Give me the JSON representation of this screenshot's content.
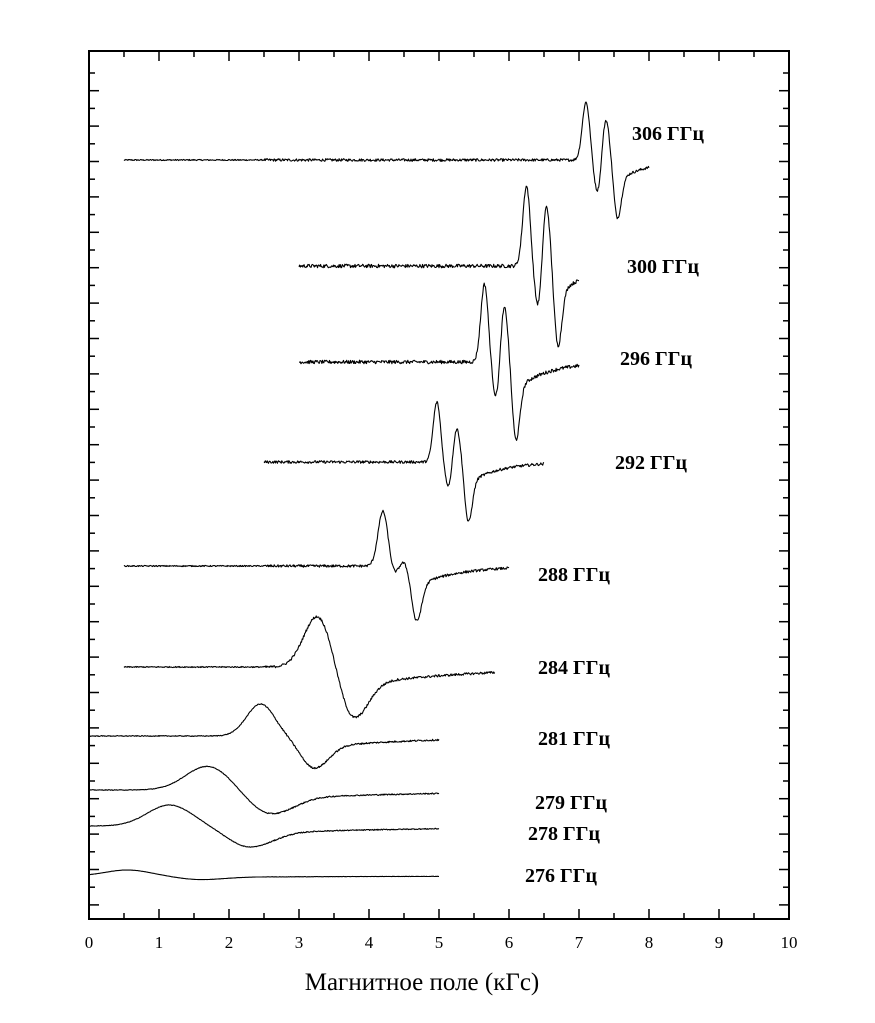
{
  "chart_data": {
    "type": "line",
    "title": "",
    "xlabel": "Магнитное поле (кГс)",
    "ylabel": "",
    "xlim": [
      0,
      10
    ],
    "x_ticks": [
      "0",
      "1",
      "2",
      "3",
      "4",
      "5",
      "6",
      "7",
      "8",
      "9",
      "10"
    ],
    "grid": false,
    "legend": "none",
    "series": [
      {
        "name": "306 ГГц",
        "x_start": 0.5,
        "x_end": 8.0,
        "peaks": [
          [
            7.1,
            1.0
          ],
          [
            7.27,
            -0.6
          ],
          [
            7.38,
            0.75
          ],
          [
            7.55,
            -1.0
          ]
        ]
      },
      {
        "name": "300 ГГц",
        "x_start": 3.0,
        "x_end": 7.0,
        "peaks": [
          [
            6.25,
            1.0
          ],
          [
            6.42,
            -0.55
          ],
          [
            6.53,
            0.8
          ],
          [
            6.7,
            -1.0
          ]
        ]
      },
      {
        "name": "296 ГГц",
        "x_start": 3.0,
        "x_end": 7.0,
        "peaks": [
          [
            5.65,
            1.0
          ],
          [
            5.82,
            -0.5
          ],
          [
            5.93,
            0.75
          ],
          [
            6.1,
            -1.0
          ]
        ]
      },
      {
        "name": "292 ГГц",
        "x_start": 2.5,
        "x_end": 6.5,
        "peaks": [
          [
            4.97,
            1.0
          ],
          [
            5.14,
            -0.45
          ],
          [
            5.25,
            0.6
          ],
          [
            5.42,
            -1.0
          ]
        ]
      },
      {
        "name": "288 ГГц",
        "x_start": 0.5,
        "x_end": 6.0,
        "peaks": [
          [
            4.2,
            1.0
          ],
          [
            4.38,
            -0.2
          ],
          [
            4.47,
            0.15
          ],
          [
            4.68,
            -1.0
          ]
        ]
      },
      {
        "name": "284 ГГц",
        "x_start": 0.5,
        "x_end": 5.8,
        "peaks": [
          [
            3.27,
            1.0
          ],
          [
            3.78,
            -1.0
          ]
        ]
      },
      {
        "name": "281 ГГц",
        "x_start": 0.0,
        "x_end": 5.0,
        "peaks": [
          [
            2.45,
            1.0
          ],
          [
            3.22,
            -1.0
          ]
        ]
      },
      {
        "name": "279 ГГц",
        "x_start": 0.0,
        "x_end": 5.0,
        "peaks": [
          [
            1.7,
            1.0
          ],
          [
            2.6,
            -1.0
          ]
        ]
      },
      {
        "name": "278  ГГц",
        "x_start": 0.0,
        "x_end": 5.0,
        "peaks": [
          [
            1.15,
            1.0
          ],
          [
            2.3,
            -1.0
          ]
        ]
      },
      {
        "name": "276 ГГц",
        "x_start": 0.0,
        "x_end": 5.0,
        "peaks": [
          [
            0.55,
            1.0
          ],
          [
            1.6,
            -0.6
          ]
        ]
      }
    ]
  }
}
